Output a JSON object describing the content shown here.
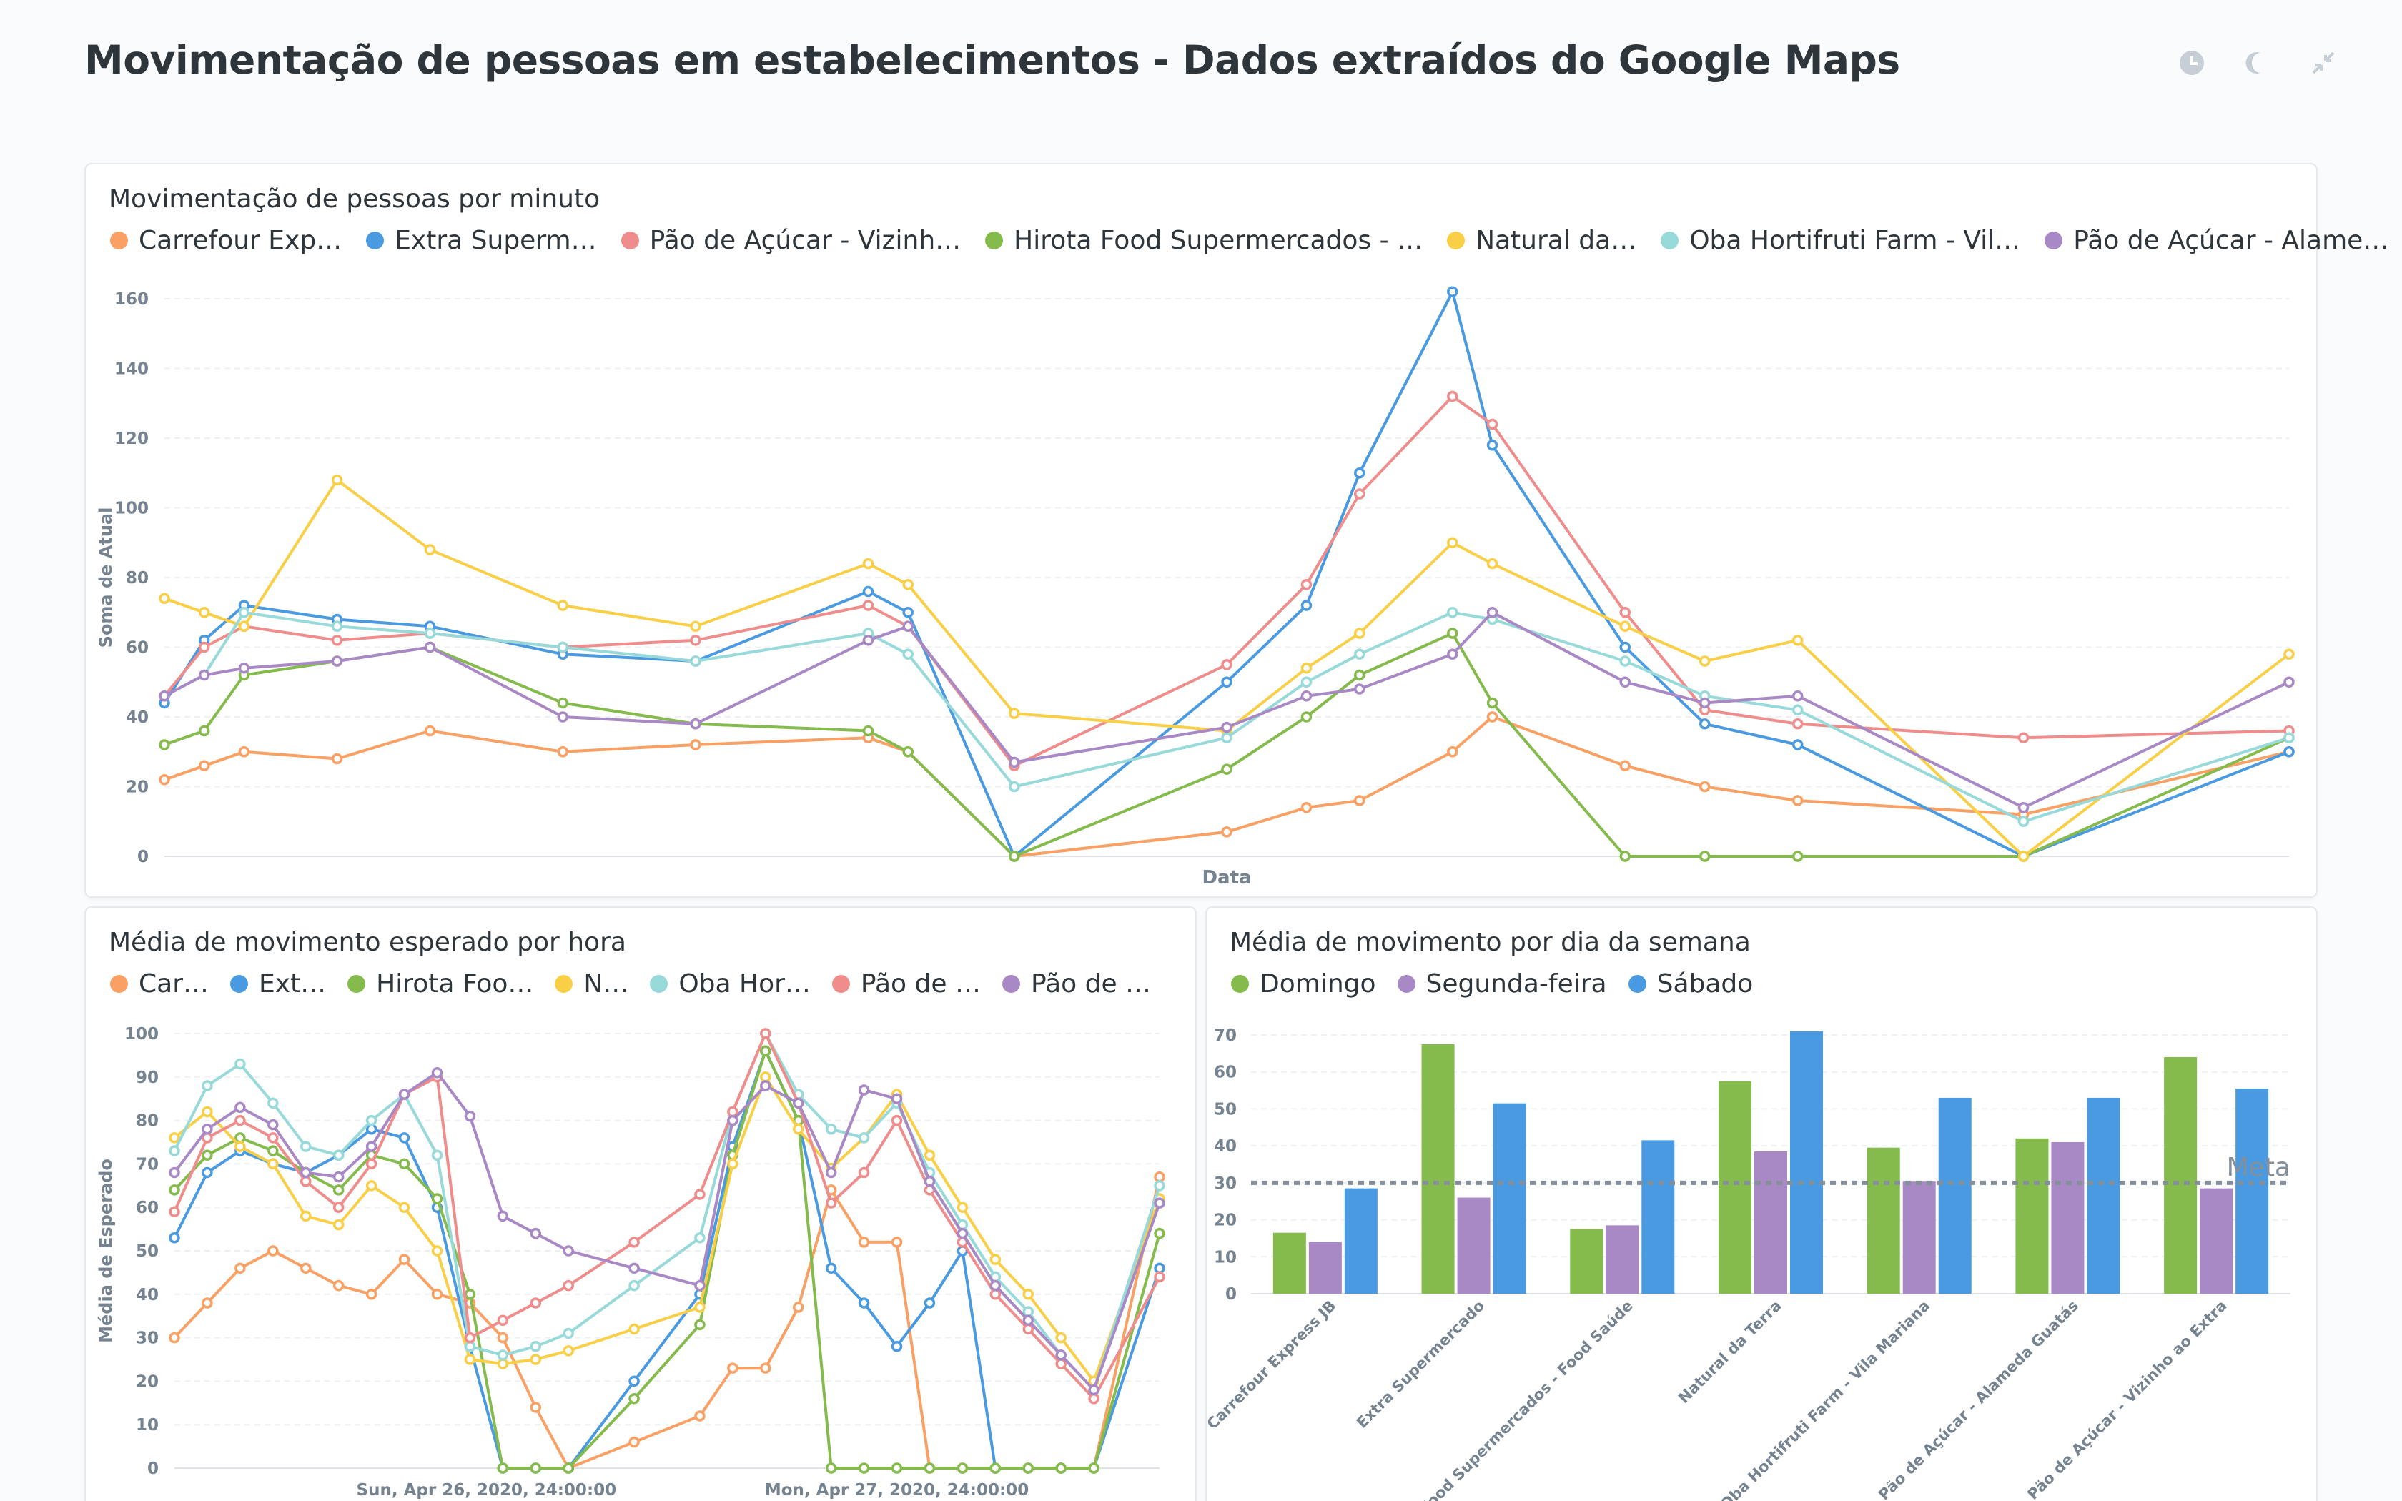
{
  "dashboard": {
    "title": "Movimentação de pessoas em estabelecimentos - Dados extraídos do Google Maps"
  },
  "header_icons": [
    "clock-icon",
    "moon-icon",
    "collapse-icon"
  ],
  "chart_data": [
    {
      "type": "line",
      "title": "Movimentação de pessoas por minuto",
      "xlabel": "Data",
      "ylabel": "Soma de Atual",
      "ylim": [
        0,
        160
      ],
      "yticks": [
        0,
        20,
        40,
        60,
        80,
        100,
        120,
        140,
        160
      ],
      "legend": "top",
      "legend_labels": [
        "Carrefour Exp…",
        "Extra Superm…",
        "Pão de Açúcar - Vizinh…",
        "Hirota Food Supermercados - …",
        "Natural da…",
        "Oba Hortifruti Farm - Vil…",
        "Pão de Açúcar - Alame…"
      ],
      "x": [
        0,
        0.3,
        0.6,
        1.3,
        2,
        3,
        4,
        5.3,
        5.6,
        6.4,
        8,
        8.6,
        9,
        9.7,
        10,
        11,
        11.6,
        12.3,
        14,
        16
      ],
      "series": [
        {
          "name": "Carrefour Express JB",
          "color": "#f9a064",
          "values": [
            22,
            26,
            30,
            28,
            36,
            30,
            32,
            34,
            30,
            0,
            7,
            14,
            16,
            30,
            40,
            26,
            20,
            16,
            12,
            30
          ]
        },
        {
          "name": "Extra Supermercado",
          "color": "#4a9ae1",
          "values": [
            44,
            62,
            72,
            68,
            66,
            58,
            56,
            76,
            70,
            0,
            50,
            72,
            110,
            162,
            118,
            60,
            38,
            32,
            0,
            30
          ]
        },
        {
          "name": "Pão de Açúcar - Vizinho ao Extra",
          "color": "#ef8c8c",
          "values": [
            46,
            60,
            66,
            62,
            64,
            60,
            62,
            72,
            66,
            26,
            55,
            78,
            104,
            132,
            124,
            70,
            42,
            38,
            34,
            36
          ]
        },
        {
          "name": "Hirota Food Supermercados - Food Saúde",
          "color": "#84bb4c",
          "values": [
            32,
            36,
            52,
            56,
            60,
            44,
            38,
            36,
            30,
            0,
            25,
            40,
            52,
            64,
            44,
            0,
            0,
            0,
            0,
            34
          ]
        },
        {
          "name": "Natural da Terra",
          "color": "#f9cf48",
          "values": [
            74,
            70,
            66,
            108,
            88,
            72,
            66,
            84,
            78,
            41,
            36,
            54,
            64,
            90,
            84,
            66,
            56,
            62,
            0,
            58
          ]
        },
        {
          "name": "Oba Hortifruti Farm - Vila Mariana",
          "color": "#98d9d9",
          "values": [
            46,
            52,
            70,
            66,
            64,
            60,
            56,
            64,
            58,
            20,
            34,
            50,
            58,
            70,
            68,
            56,
            46,
            42,
            10,
            34
          ]
        },
        {
          "name": "Pão de Açúcar - Alameda Guatás",
          "color": "#a989c5",
          "values": [
            46,
            52,
            54,
            56,
            60,
            40,
            38,
            62,
            66,
            27,
            37,
            46,
            48,
            58,
            70,
            50,
            44,
            46,
            14,
            50
          ]
        }
      ]
    },
    {
      "type": "line",
      "title": "Média de movimento esperado por hora",
      "xlabel": "",
      "ylabel": "Média de Esperado",
      "ylim": [
        0,
        100
      ],
      "yticks": [
        0,
        10,
        20,
        30,
        40,
        50,
        60,
        70,
        80,
        90,
        100
      ],
      "x_tick_labels": [
        "Sun, Apr 26, 2020, 24:00:00",
        "Mon, Apr 27, 2020, 24:00:00"
      ],
      "legend": "top",
      "legend_labels": [
        "Car…",
        "Ext…",
        "Hirota Foo…",
        "N…",
        "Oba Hor…",
        "Pão de …",
        "Pão de …"
      ],
      "x": [
        0,
        1,
        2,
        3,
        4,
        5,
        6,
        7,
        8,
        9,
        10,
        11,
        12,
        14,
        16,
        17,
        18,
        19,
        20,
        21,
        22,
        23,
        24,
        25,
        26,
        27,
        28,
        30
      ],
      "series": [
        {
          "name": "Carrefour Express JB",
          "color": "#f9a064",
          "values": [
            30,
            38,
            46,
            50,
            46,
            42,
            40,
            48,
            40,
            38,
            30,
            14,
            0,
            6,
            12,
            23,
            23,
            37,
            64,
            52,
            52,
            0,
            0,
            0,
            0,
            0,
            0,
            67
          ]
        },
        {
          "name": "Extra Supermercado",
          "color": "#4a9ae1",
          "values": [
            53,
            68,
            73,
            70,
            68,
            72,
            78,
            76,
            60,
            28,
            0,
            0,
            0,
            20,
            40,
            74,
            96,
            80,
            46,
            38,
            28,
            38,
            50,
            0,
            0,
            0,
            0,
            46
          ]
        },
        {
          "name": "Hirota Food Supermercados - Food Saúde",
          "color": "#84bb4c",
          "values": [
            64,
            72,
            76,
            73,
            68,
            64,
            72,
            70,
            62,
            40,
            0,
            0,
            0,
            16,
            33,
            72,
            96,
            80,
            0,
            0,
            0,
            0,
            0,
            0,
            0,
            0,
            0,
            54
          ]
        },
        {
          "name": "Natural da Terra",
          "color": "#f9cf48",
          "values": [
            76,
            82,
            74,
            70,
            58,
            56,
            65,
            60,
            50,
            25,
            24,
            25,
            27,
            32,
            37,
            70,
            90,
            78,
            69,
            76,
            86,
            72,
            60,
            48,
            40,
            30,
            20,
            62
          ]
        },
        {
          "name": "Oba Hortifruti Farm - Vila Mariana",
          "color": "#98d9d9",
          "values": [
            73,
            88,
            93,
            84,
            74,
            72,
            80,
            86,
            72,
            28,
            26,
            28,
            31,
            42,
            53,
            82,
            100,
            86,
            78,
            76,
            84,
            68,
            56,
            44,
            36,
            26,
            18,
            65
          ]
        },
        {
          "name": "Pão de Açúcar - Vizinho ao Extra",
          "color": "#ef8c8c",
          "values": [
            59,
            76,
            80,
            76,
            66,
            60,
            70,
            86,
            90,
            30,
            34,
            38,
            42,
            52,
            63,
            82,
            100,
            84,
            61,
            68,
            80,
            64,
            52,
            40,
            32,
            24,
            16,
            44
          ]
        },
        {
          "name": "Pão de Açúcar - Alameda Guatás",
          "color": "#a989c5",
          "values": [
            68,
            78,
            83,
            79,
            68,
            67,
            74,
            86,
            91,
            81,
            58,
            54,
            50,
            46,
            42,
            80,
            88,
            84,
            68,
            87,
            85,
            66,
            54,
            42,
            34,
            26,
            18,
            61
          ]
        }
      ]
    },
    {
      "type": "bar",
      "title": "Média de movimento por dia da semana",
      "ylim": [
        0,
        70
      ],
      "yticks": [
        0,
        10,
        20,
        30,
        40,
        50,
        60,
        70
      ],
      "legend": "top",
      "goal": {
        "value": 30,
        "label": "Meta"
      },
      "categories": [
        "Carrefour Express JB",
        "Extra Supermercado",
        "Hirota Food Supermercados - Food Saúde",
        "Natural da Terra",
        "Oba Hortifruti Farm - Vila Mariana",
        "Pão de Açúcar - Alameda Guatás",
        "Pão de Açúcar - Vizinho ao Extra"
      ],
      "series": [
        {
          "name": "Domingo",
          "color": "#84bb4c",
          "values": [
            16.5,
            67.5,
            17.5,
            57.5,
            39.5,
            42,
            64
          ]
        },
        {
          "name": "Segunda-feira",
          "color": "#a989c5",
          "values": [
            14,
            26,
            18.5,
            38.5,
            30.5,
            41,
            28.5
          ]
        },
        {
          "name": "Sábado",
          "color": "#4a9ae1",
          "values": [
            28.5,
            51.5,
            41.5,
            71,
            53,
            53,
            55.5
          ]
        }
      ]
    }
  ]
}
